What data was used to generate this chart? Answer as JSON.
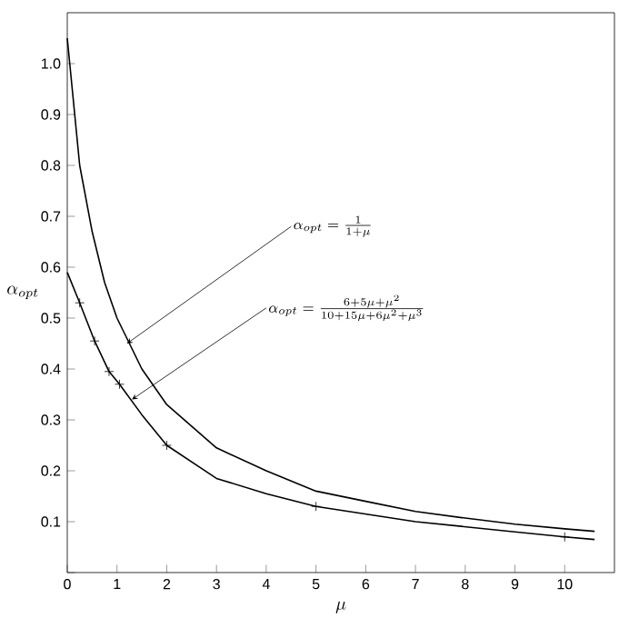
{
  "chart_data": {
    "type": "line",
    "xlabel": "\\mu",
    "ylabel": "\\alpha_{opt}",
    "xlim": [
      0,
      11
    ],
    "ylim": [
      0,
      1.1
    ],
    "xticks": [
      0,
      1,
      2,
      3,
      4,
      5,
      6,
      7,
      8,
      9,
      10
    ],
    "yticks": [
      {
        "value": 0,
        "label": null
      },
      0.1,
      0.2,
      0.3,
      0.4,
      0.5,
      0.6,
      0.7,
      0.8,
      0.9,
      {
        "value": 1,
        "label": "1.0"
      }
    ],
    "series": [
      {
        "color": "#000000",
        "marker": "none",
        "x": [
          0,
          0.25,
          0.5,
          0.75,
          1,
          1.5,
          2,
          3,
          4,
          5,
          6,
          7,
          8,
          9,
          10,
          10.6
        ],
        "values": [
          1.05,
          0.8,
          0.67,
          0.57,
          0.5,
          0.4,
          0.33,
          0.245,
          0.2,
          0.16,
          0.14,
          0.12,
          0.107,
          0.095,
          0.086,
          0.081
        ]
      },
      {
        "color": "#000000",
        "marker": "none",
        "x": [
          0,
          0.25,
          0.55,
          0.84,
          1.05,
          1.5,
          2,
          3,
          4,
          5,
          6,
          7,
          8,
          9,
          10,
          10.6
        ],
        "values": [
          0.59,
          0.53,
          0.455,
          0.395,
          0.37,
          0.31,
          0.25,
          0.185,
          0.155,
          0.13,
          0.115,
          0.1,
          0.09,
          0.08,
          0.07,
          0.065
        ]
      },
      {
        "type": "scatter",
        "color": "#000000",
        "marker": "cross",
        "x": [
          0.25,
          0.55,
          0.84,
          1.05,
          2,
          5,
          10
        ],
        "values": [
          0.53,
          0.455,
          0.395,
          0.37,
          0.25,
          0.13,
          0.07
        ]
      }
    ],
    "annotations": [
      {
        "text": "\\alpha_{opt} = \\frac{1}{1+\\mu}",
        "x": 1.2,
        "y": 0.45
      },
      {
        "text": "\\alpha_{opt} = \\frac{6+5\\mu+\\mu^2}{10+15\\mu+6\\mu^2+\\mu^3}",
        "x": 1.3,
        "y": 0.34
      }
    ],
    "grid": false
  }
}
